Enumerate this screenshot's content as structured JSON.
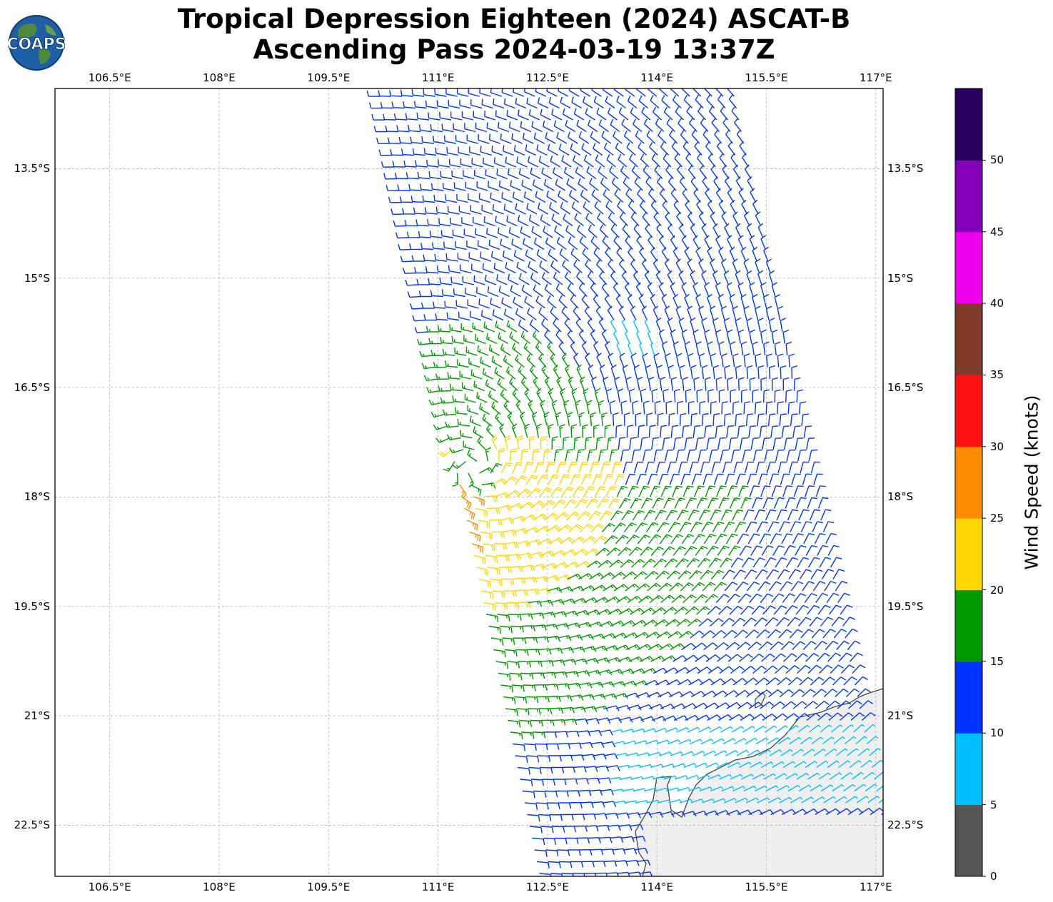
{
  "title": {
    "line1": "Tropical Depression Eighteen (2024) ASCAT-B",
    "line2": "Ascending Pass 2024-03-19 13:37Z"
  },
  "logo": {
    "text": "COAPS",
    "icon": "globe-logo-icon"
  },
  "map": {
    "lon_range": [
      105.75,
      117.1
    ],
    "lat_range": [
      -23.2,
      -12.4
    ],
    "x_ticks": [
      "106.5°E",
      "108°E",
      "109.5°E",
      "111°E",
      "112.5°E",
      "114°E",
      "115.5°E",
      "117°E"
    ],
    "y_ticks": [
      "13.5°S",
      "15°S",
      "16.5°S",
      "18°S",
      "19.5°S",
      "21°S",
      "22.5°S"
    ],
    "gridlines": true,
    "land_color": "#efefef",
    "coast_color": "#444444",
    "storm_center": {
      "lon": 111.5,
      "lat": -17.6
    }
  },
  "colorbar": {
    "label": "Wind Speed (knots)",
    "tick_labels": [
      "0",
      "5",
      "10",
      "15",
      "20",
      "25",
      "30",
      "35",
      "40",
      "45",
      "50"
    ],
    "colors": [
      "#555555",
      "#00bfff",
      "#0033ff",
      "#009900",
      "#ffd700",
      "#ff8c00",
      "#ff1111",
      "#7f3a2a",
      "#ee00ee",
      "#8400b8",
      "#2a0060"
    ]
  }
}
